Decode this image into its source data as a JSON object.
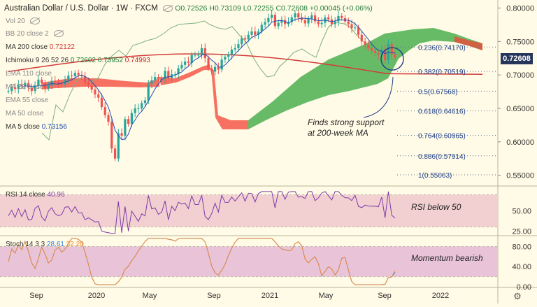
{
  "header": {
    "symbol": "Australian Dollar / U.S. Dollar · 1W · FXCM",
    "ohlc": "O0.72526 H0.73109 L0.72255 C0.72608 +0.00045 (+0.06%)"
  },
  "legend": {
    "vol": "Vol 20",
    "bb": "BB 20 close 2",
    "ma200_label": "MA 200 close",
    "ma200_value": "0.72122",
    "ichimoku_label": "Ichimoku 9 26 52 26",
    "ichimoku_v1": "0.72602",
    "ichimoku_v2": "0.73952",
    "ichimoku_v3": "0.74993",
    "ema110": "EMA 110 close",
    "ma_hidden": "MA 20 close",
    "ema55": "EMA 55 close",
    "ma50": "MA 50 close",
    "ma5_label": "MA 5 close",
    "ma5_value": "0.73156",
    "rsi_label": "RSI 14 close",
    "rsi_value": "40.96",
    "stoch_label": "Stoch 14 3 3",
    "stoch_k": "28.61",
    "stoch_d": "32.20"
  },
  "annotations": {
    "support": [
      "Finds strong support",
      "at 200-week MA"
    ],
    "rsi": "RSI below 50",
    "stoch": "Momentum bearish"
  },
  "last_price": "0.72608",
  "fib_levels": [
    {
      "label": "0.236(0.74170)",
      "value": 0.7417
    },
    {
      "label": "0.382(0.70519)",
      "value": 0.70519
    },
    {
      "label": "0.5(0.67568)",
      "value": 0.67568
    },
    {
      "label": "0.618(0.64616)",
      "value": 0.64616
    },
    {
      "label": "0.764(0.60965)",
      "value": 0.60965
    },
    {
      "label": "0.886(0.57914)",
      "value": 0.57914
    },
    {
      "label": "1(0.55063)",
      "value": 0.55063
    }
  ],
  "colors": {
    "up": "#26a69a",
    "down": "#ef5350",
    "ma200": "#d23b3b",
    "ma5": "#1f4fb5",
    "cloud_green": "#4caf50",
    "cloud_red": "#f44336",
    "chikou": "#7fb27f",
    "rsi_line": "#7e3ca8",
    "rsi_band": "#f2cfd0",
    "stoch_band": "#e9c4d9",
    "stoch_k": "#2f7fe0",
    "stoch_d": "#f08c3a",
    "badge": "#26355a"
  },
  "chart_data": [
    {
      "type": "candlestick",
      "x_ticks": [
        "Sep",
        "2020",
        "May",
        "Sep",
        "2021",
        "May",
        "Sep",
        "2022"
      ],
      "y_ticks": [
        "0.80000",
        "0.75000",
        "0.70000",
        "0.65000",
        "0.60000",
        "0.55000"
      ],
      "ylim": [
        0.535,
        0.812
      ],
      "series_close": [
        0.676,
        0.682,
        0.679,
        0.686,
        0.683,
        0.688,
        0.681,
        0.676,
        0.684,
        0.693,
        0.688,
        0.68,
        0.684,
        0.691,
        0.69,
        0.687,
        0.686,
        0.693,
        0.699,
        0.698,
        0.703,
        0.7,
        0.698,
        0.689,
        0.684,
        0.678,
        0.671,
        0.666,
        0.652,
        0.64,
        0.63,
        0.59,
        0.575,
        0.613,
        0.609,
        0.634,
        0.627,
        0.643,
        0.65,
        0.65,
        0.658,
        0.662,
        0.687,
        0.692,
        0.697,
        0.694,
        0.694,
        0.706,
        0.695,
        0.701,
        0.701,
        0.71,
        0.715,
        0.72,
        0.718,
        0.73,
        0.73,
        0.73,
        0.74,
        0.725,
        0.71,
        0.705,
        0.712,
        0.708,
        0.723,
        0.727,
        0.73,
        0.738,
        0.74,
        0.746,
        0.755,
        0.753,
        0.76,
        0.765,
        0.76,
        0.765,
        0.775,
        0.779,
        0.785,
        0.79,
        0.773,
        0.778,
        0.782,
        0.776,
        0.779,
        0.786,
        0.792,
        0.786,
        0.782,
        0.777,
        0.784,
        0.789,
        0.78,
        0.776,
        0.778,
        0.786,
        0.783,
        0.776,
        0.78,
        0.788,
        0.785,
        0.78,
        0.776,
        0.77,
        0.771,
        0.76,
        0.75,
        0.745,
        0.74,
        0.736,
        0.733,
        0.73,
        0.738,
        0.722,
        0.746,
        0.731,
        0.726
      ],
      "ma200": {
        "start": 0.705,
        "peak": 0.732,
        "end": 0.7212
      },
      "ma5_last": 0.73156,
      "ichimoku_last": [
        0.72602,
        0.73952,
        0.74993
      ]
    },
    {
      "type": "line",
      "name": "RSI 14",
      "y_ticks": [
        "50.00",
        "25.00"
      ],
      "band": [
        30,
        70
      ],
      "last": 40.96
    },
    {
      "type": "line",
      "name": "Stoch 14 3 3",
      "y_ticks": [
        "80.00",
        "40.00",
        "0.00"
      ],
      "band": [
        20,
        80
      ],
      "k_last": 28.61,
      "d_last": 32.2
    }
  ]
}
